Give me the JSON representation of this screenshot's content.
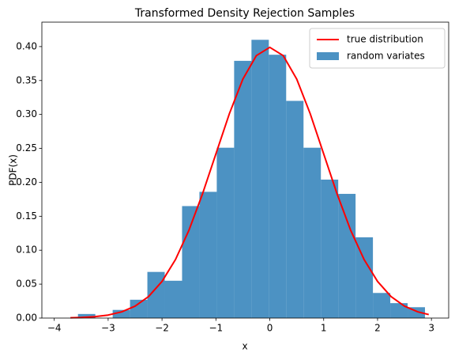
{
  "chart_data": {
    "type": "histogram",
    "title": "Transformed Density Rejection Samples",
    "xlabel": "x",
    "ylabel": "PDF(x)",
    "xlim": [
      -4.23,
      3.32
    ],
    "ylim": [
      0,
      0.436
    ],
    "xticks": [
      {
        "value": -4,
        "label": "−4"
      },
      {
        "value": -3,
        "label": "−3"
      },
      {
        "value": -2,
        "label": "−2"
      },
      {
        "value": -1,
        "label": "−1"
      },
      0,
      1,
      2,
      3
    ],
    "yticks": [
      {
        "value": 0,
        "label": "0.00"
      },
      {
        "value": 0.05,
        "label": "0.05"
      },
      {
        "value": 0.1,
        "label": "0.10"
      },
      {
        "value": 0.15,
        "label": "0.15"
      },
      {
        "value": 0.2,
        "label": "0.20"
      },
      {
        "value": 0.25,
        "label": "0.25"
      },
      {
        "value": 0.3,
        "label": "0.30"
      },
      {
        "value": 0.35,
        "label": "0.35"
      },
      {
        "value": 0.4,
        "label": "0.40"
      }
    ],
    "legend": "upper right",
    "series": [
      {
        "name": "true distribution",
        "type": "line",
        "color": "#ff0000",
        "x": [
          -3.7,
          -3.5,
          -3.25,
          -3,
          -2.75,
          -2.5,
          -2.25,
          -2,
          -1.75,
          -1.5,
          -1.25,
          -1,
          -0.75,
          -0.5,
          -0.25,
          0,
          0.25,
          0.5,
          0.75,
          1,
          1.25,
          1.5,
          1.75,
          2,
          2.25,
          2.5,
          2.75,
          2.95
        ],
        "values": [
          0.00042,
          0.00087,
          0.00203,
          0.00443,
          0.00909,
          0.01753,
          0.03174,
          0.05399,
          0.08628,
          0.12952,
          0.18265,
          0.24197,
          0.30114,
          0.35207,
          0.38667,
          0.39894,
          0.38667,
          0.35207,
          0.30114,
          0.24197,
          0.18265,
          0.12952,
          0.08628,
          0.05399,
          0.03174,
          0.01753,
          0.00909,
          0.00514
        ]
      },
      {
        "name": "random variates",
        "type": "histogram",
        "color": "#1f77b4",
        "opacity": 0.8,
        "bins": [
          -3.56,
          -3.238,
          -2.916,
          -2.594,
          -2.272,
          -1.95,
          -1.628,
          -1.306,
          -0.984,
          -0.662,
          -0.34,
          -0.018,
          0.304,
          0.626,
          0.948,
          1.27,
          1.592,
          1.914,
          2.236,
          2.558,
          2.88
        ],
        "values": [
          0.006,
          0,
          0.012,
          0.027,
          0.068,
          0.055,
          0.165,
          0.186,
          0.251,
          0.379,
          0.41,
          0.388,
          0.32,
          0.251,
          0.204,
          0.183,
          0.119,
          0.037,
          0.022,
          0.016
        ]
      }
    ]
  }
}
